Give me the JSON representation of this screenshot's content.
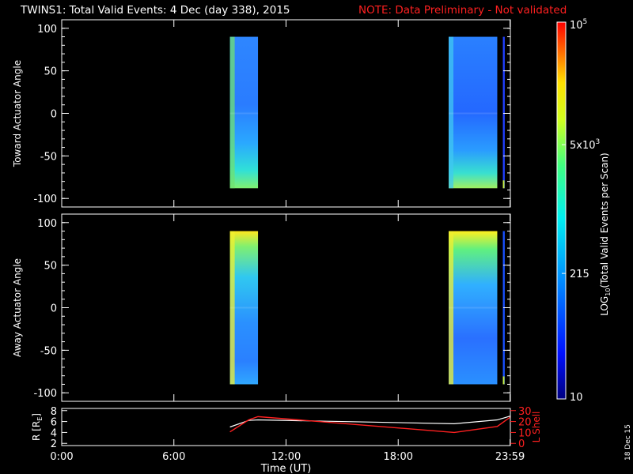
{
  "header": {
    "title": "TWINS1: Total Valid Events:  4 Dec (day 338), 2015",
    "note": "NOTE: Data Preliminary - Not validated"
  },
  "colors": {
    "background": "#000000",
    "axis": "#ffffff",
    "note": "#ff2020",
    "lshell": "#ff2020",
    "r_line": "#ffffff"
  },
  "chart_data": [
    {
      "type": "heatmap",
      "panel": "toward",
      "ylabel": "Toward Actuator Angle",
      "ylim": [
        -110,
        110
      ],
      "yticks": [
        "100",
        "50",
        "0",
        "-50",
        "-100"
      ],
      "xlim_hours": [
        0,
        24
      ],
      "data_ranges_ut": [
        [
          9.0,
          10.5
        ],
        [
          20.7,
          23.3
        ],
        [
          23.6,
          23.7
        ]
      ],
      "y_extent": [
        -88,
        90
      ],
      "colormap": "rainbow (blue to red)",
      "log_scale": true
    },
    {
      "type": "heatmap",
      "panel": "away",
      "ylabel": "Away Actuator Angle",
      "ylim": [
        -110,
        110
      ],
      "yticks": [
        "100",
        "50",
        "0",
        "-50",
        "-100"
      ],
      "xlim_hours": [
        0,
        24
      ],
      "data_ranges_ut": [
        [
          9.0,
          10.5
        ],
        [
          20.7,
          23.3
        ],
        [
          23.6,
          23.7
        ]
      ],
      "y_extent": [
        -90,
        90
      ],
      "colormap": "rainbow (blue to red)",
      "log_scale": true
    },
    {
      "type": "line",
      "panel": "ephemeris",
      "ylabel_left": "R [R",
      "ylabel_left_sub": "E",
      "ylabel_right": "L Shell",
      "yticks_left": [
        "8",
        "6",
        "4",
        "2"
      ],
      "yticks_right": [
        "30",
        "20",
        "10",
        "0"
      ],
      "ylim_left": [
        1.6,
        8.4
      ],
      "ylim_right": [
        -2,
        32
      ],
      "series": [
        {
          "name": "R [RE]",
          "x": [
            9.0,
            10.0,
            10.5,
            21.0,
            23.3,
            23.99
          ],
          "y": [
            5.0,
            6.2,
            6.3,
            5.6,
            6.3,
            7.0
          ]
        },
        {
          "name": "L Shell",
          "x": [
            9.0,
            10.0,
            10.5,
            21.0,
            23.3,
            23.99
          ],
          "y": [
            10.5,
            21.5,
            24.5,
            10.0,
            15.5,
            24.0
          ]
        }
      ],
      "xticks": [
        "0:00",
        "6:00",
        "12:00",
        "18:00",
        "23:59"
      ],
      "xtick_hours": [
        0,
        6,
        12,
        18,
        23.983
      ],
      "xlabel": "Time (UT)"
    }
  ],
  "colorbar": {
    "label": "LOG",
    "label_sub": "10",
    "label_rest": "(Total Valid Events per Scan)",
    "ticks": [
      {
        "base": "10",
        "exp": "5",
        "value": 100000
      },
      {
        "base": "5x10",
        "exp": "3",
        "value": 5000
      },
      {
        "base": "215",
        "exp": "",
        "value": 215
      },
      {
        "base": "10",
        "exp": "",
        "value": 10
      }
    ],
    "range": [
      10,
      100000
    ]
  },
  "footer": {
    "date_stamp": "18 Dec 15"
  }
}
